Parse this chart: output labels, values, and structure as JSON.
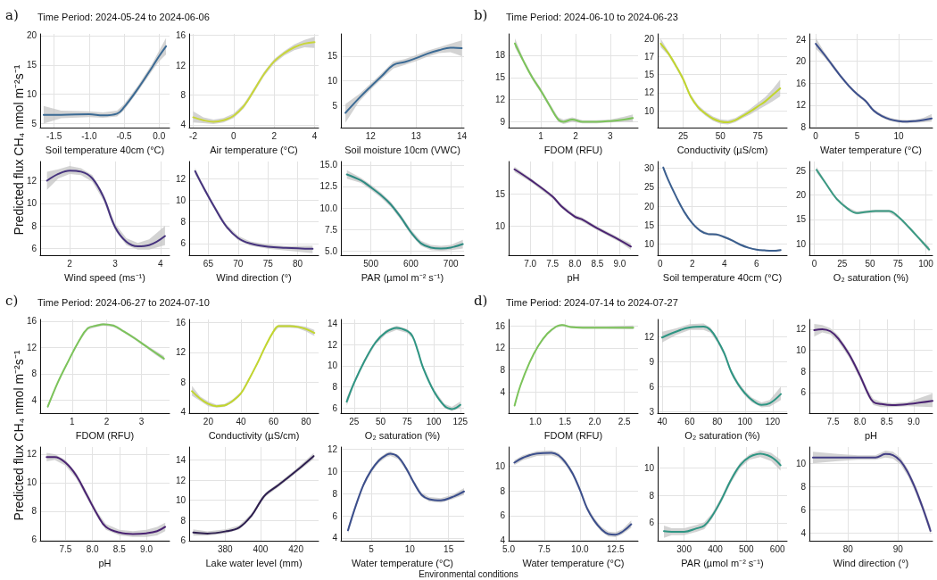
{
  "chart_data": [
    {
      "type": "line",
      "title": "Time Period: 2024-05-24 to 2024-06-06",
      "annotations": [
        "a)"
      ],
      "ylabel": "Predicted flux CH₄ nmol m⁻²s⁻¹",
      "xlabel": "Soil temperature 40cm (°C)",
      "grid": true,
      "xlim": [
        -1.7,
        0.15
      ],
      "xticks": [
        {
          "value": -1.5,
          "label": "-1.5"
        },
        {
          "value": -1,
          "label": "-1.0"
        },
        {
          "value": -0.5,
          "label": "-0.5"
        },
        {
          "value": 0,
          "label": "0.0"
        }
      ],
      "ylim": [
        4.3,
        20.3
      ],
      "yticks": [
        5,
        10,
        15,
        20
      ],
      "x": [
        -1.65,
        -1.4,
        -1.0,
        -0.8,
        -0.6,
        -0.5,
        -0.3,
        -0.1,
        0.0,
        0.1
      ],
      "series": [
        {
          "color": "#3b6a94",
          "values": [
            6.5,
            6.5,
            6.6,
            6.4,
            6.7,
            7.8,
            11,
            14.6,
            16.5,
            18.2
          ],
          "lower": [
            5.0,
            5.9,
            6.1,
            6.0,
            6.2,
            7.3,
            10.5,
            14,
            15.6,
            16.8
          ],
          "upper": [
            8.0,
            7.2,
            7.1,
            6.9,
            7.2,
            8.3,
            11.5,
            15.2,
            17.4,
            19.6
          ]
        }
      ]
    },
    {
      "type": "line",
      "xlabel": "Air temperature (°C)",
      "grid": true,
      "xlim": [
        -2.2,
        4.2
      ],
      "xticks": [
        -2,
        0,
        2,
        4
      ],
      "ylim": [
        3.6,
        16.2
      ],
      "yticks": [
        4,
        8,
        12,
        16
      ],
      "x": [
        -2,
        -1.5,
        -1,
        -0.5,
        0,
        0.5,
        1,
        1.5,
        2,
        2.5,
        3,
        3.5,
        4
      ],
      "series": [
        {
          "color": "#c9d63a",
          "values": [
            5.0,
            4.6,
            4.4,
            4.6,
            5.2,
            6.5,
            8.6,
            10.8,
            12.5,
            13.6,
            14.4,
            14.9,
            15.1
          ],
          "lower": [
            4.3,
            4.2,
            4.1,
            4.3,
            4.9,
            6.2,
            8.3,
            10.5,
            12.2,
            13.3,
            14.0,
            14.4,
            14.3
          ],
          "upper": [
            5.8,
            5.0,
            4.7,
            4.9,
            5.5,
            6.8,
            8.9,
            11.1,
            12.8,
            13.9,
            14.8,
            15.4,
            15.8
          ]
        }
      ]
    },
    {
      "type": "line",
      "xlabel": "Soil moisture 10cm (VWC)",
      "grid": true,
      "xlim": [
        11.35,
        14.05
      ],
      "xticks": [
        12,
        13,
        14
      ],
      "ylim": [
        0.5,
        19.5
      ],
      "yticks": [
        5,
        10,
        15
      ],
      "x": [
        11.45,
        11.75,
        12.0,
        12.25,
        12.5,
        12.75,
        13.0,
        13.25,
        13.5,
        13.75,
        14.0
      ],
      "series": [
        {
          "color": "#3b6a94",
          "values": [
            3.5,
            6.5,
            8.8,
            11,
            13.2,
            13.8,
            14.6,
            15.5,
            16.2,
            16.7,
            16.6
          ],
          "lower": [
            1.5,
            5.8,
            8.2,
            10.4,
            12.5,
            13.2,
            14.0,
            14.9,
            15.6,
            15.8,
            15.0
          ],
          "upper": [
            5.3,
            7.3,
            9.4,
            11.6,
            13.9,
            14.4,
            15.2,
            16.1,
            16.8,
            17.5,
            18.2
          ]
        }
      ]
    },
    {
      "type": "line",
      "xlabel": "Wind speed (ms⁻¹)",
      "grid": true,
      "xlim": [
        1.35,
        4.2
      ],
      "xticks": [
        2,
        3,
        4
      ],
      "ylim": [
        5.4,
        13.7
      ],
      "yticks": [
        6,
        8,
        10,
        12
      ],
      "x": [
        1.5,
        1.75,
        2.0,
        2.25,
        2.5,
        2.75,
        3.0,
        3.25,
        3.5,
        3.75,
        4.1
      ],
      "series": [
        {
          "color": "#46337e",
          "values": [
            12.0,
            12.6,
            12.9,
            12.8,
            12.2,
            10.5,
            7.9,
            6.6,
            6.2,
            6.3,
            7.1
          ],
          "lower": [
            11.2,
            12.2,
            12.6,
            12.5,
            11.9,
            10.2,
            7.6,
            6.3,
            5.9,
            5.9,
            6.3
          ],
          "upper": [
            12.8,
            13.0,
            13.3,
            13.1,
            12.5,
            10.8,
            8.2,
            6.9,
            6.5,
            6.8,
            8.0
          ]
        }
      ]
    },
    {
      "type": "line",
      "xlabel": "Wind direction (°)",
      "grid": true,
      "xlim": [
        61.8,
        83.5
      ],
      "xticks": [
        65,
        70,
        75,
        80
      ],
      "ylim": [
        4.9,
        13.6
      ],
      "yticks": [
        6,
        8,
        10,
        12
      ],
      "x": [
        62.8,
        64,
        66,
        68,
        70,
        72,
        75,
        78,
        82.5
      ],
      "series": [
        {
          "color": "#46337e",
          "values": [
            12.7,
            11.4,
            9.4,
            7.6,
            6.5,
            6.0,
            5.7,
            5.6,
            5.5
          ],
          "lower": [
            12.4,
            11.2,
            9.2,
            7.4,
            6.3,
            5.8,
            5.5,
            5.35,
            5.1
          ],
          "upper": [
            13.0,
            11.6,
            9.6,
            7.8,
            6.7,
            6.2,
            5.9,
            5.75,
            5.8
          ]
        }
      ]
    },
    {
      "type": "line",
      "xlabel": "PAR (µmol m⁻² s⁻¹)",
      "grid": true,
      "xlim": [
        425,
        733
      ],
      "xticks": [
        500,
        600,
        700
      ],
      "ylim": [
        4.5,
        15.4
      ],
      "yticks": [
        {
          "value": 5,
          "label": "5.0"
        },
        {
          "value": 7.5,
          "label": "7.5"
        },
        {
          "value": 10,
          "label": "10.0"
        },
        {
          "value": 12.5,
          "label": "12.5"
        },
        {
          "value": 15,
          "label": "15.0"
        }
      ],
      "x": [
        440,
        475,
        500,
        525,
        550,
        575,
        600,
        625,
        650,
        675,
        700,
        730
      ],
      "series": [
        {
          "color": "#2e8b82",
          "values": [
            13.9,
            13.2,
            12.4,
            11.5,
            10.4,
            8.9,
            7.2,
            5.9,
            5.4,
            5.3,
            5.4,
            5.8
          ],
          "lower": [
            13.4,
            12.9,
            12.1,
            11.2,
            10.1,
            8.6,
            6.9,
            5.6,
            5.1,
            5.0,
            5.1,
            5.3
          ],
          "upper": [
            14.4,
            13.5,
            12.7,
            11.8,
            10.7,
            9.2,
            7.5,
            6.2,
            5.7,
            5.6,
            5.7,
            6.3
          ]
        }
      ]
    },
    {
      "type": "line",
      "title": "Time Period: 2024-06-10 to 2024-06-23",
      "annotations": [
        "b)"
      ],
      "xlabel": "FDOM (RFU)",
      "grid": true,
      "xlim": [
        0.07,
        3.8
      ],
      "xticks": [
        1,
        2,
        3
      ],
      "ylim": [
        8.2,
        20.9
      ],
      "yticks": [
        9,
        12,
        15,
        18
      ],
      "x": [
        0.25,
        0.5,
        0.75,
        1.0,
        1.25,
        1.5,
        1.65,
        1.9,
        2.2,
        2.6,
        3.0,
        3.4,
        3.65
      ],
      "series": [
        {
          "color": "#7cc45a",
          "values": [
            19.6,
            17.2,
            15.0,
            13.2,
            11.2,
            9.3,
            9.0,
            9.3,
            9.0,
            9.0,
            9.1,
            9.3,
            9.5
          ],
          "lower": [
            19.1,
            16.9,
            14.7,
            12.9,
            10.9,
            9.0,
            8.7,
            9.0,
            8.8,
            8.8,
            8.9,
            9.0,
            9.0
          ],
          "upper": [
            20.3,
            17.5,
            15.3,
            13.5,
            11.5,
            9.6,
            9.3,
            9.6,
            9.2,
            9.2,
            9.3,
            9.7,
            10.0
          ]
        }
      ]
    },
    {
      "type": "line",
      "xlabel": "Conductivity (µS/cm)",
      "grid": true,
      "xlim": [
        8,
        94.6
      ],
      "xticks": [
        25,
        50,
        75
      ],
      "ylim": [
        7.65,
        20.65
      ],
      "yticks": [
        10,
        {
          "value": 12.5,
          "label": "12"
        },
        15,
        {
          "value": 17.5,
          "label": "17"
        },
        20
      ],
      "x": [
        10,
        15,
        20,
        25,
        30,
        35,
        40,
        45,
        50,
        55,
        60,
        65,
        70,
        75,
        80,
        85,
        90
      ],
      "series": [
        {
          "color": "#c2d62e",
          "values": [
            19.3,
            18.0,
            16.3,
            14.4,
            12.0,
            10.5,
            9.6,
            8.9,
            8.5,
            8.4,
            8.7,
            9.3,
            9.9,
            10.6,
            11.3,
            12.2,
            13.1
          ],
          "lower": [
            18.8,
            17.7,
            16.0,
            14.1,
            11.7,
            10.2,
            9.3,
            8.6,
            8.2,
            8.1,
            8.4,
            9.0,
            9.5,
            10.1,
            10.7,
            11.3,
            12.0
          ],
          "upper": [
            20.0,
            18.3,
            16.6,
            14.7,
            12.3,
            10.8,
            9.9,
            9.2,
            8.8,
            8.7,
            9.0,
            9.6,
            10.3,
            11.1,
            11.9,
            13.0,
            14.3
          ]
        }
      ]
    },
    {
      "type": "line",
      "xlabel": "Water temperature (°C)",
      "grid": true,
      "xlim": [
        -0.77,
        14.1
      ],
      "xticks": [
        0,
        5,
        10
      ],
      "ylim": [
        7.9,
        25
      ],
      "yticks": [
        8,
        12,
        16,
        20,
        24
      ],
      "x": [
        0,
        1,
        2,
        3,
        4,
        5,
        6,
        7,
        8,
        9,
        10,
        11,
        12,
        13,
        14
      ],
      "series": [
        {
          "color": "#3b4e8c",
          "values": [
            23.2,
            21.3,
            19.3,
            17.3,
            15.5,
            14.0,
            12.8,
            11.0,
            10.0,
            9.4,
            9.1,
            9.0,
            9.1,
            9.3,
            9.6
          ],
          "lower": [
            22.3,
            20.8,
            18.9,
            17.0,
            15.2,
            13.7,
            12.5,
            10.7,
            9.7,
            9.1,
            8.8,
            8.7,
            8.8,
            8.9,
            9.0
          ],
          "upper": [
            24.3,
            21.8,
            19.7,
            17.6,
            15.8,
            14.3,
            13.1,
            11.3,
            10.3,
            9.7,
            9.4,
            9.3,
            9.4,
            9.7,
            10.4
          ]
        }
      ]
    },
    {
      "type": "line",
      "xlabel": "pH",
      "grid": true,
      "xlim": [
        6.52,
        9.41
      ],
      "xticks": [
        {
          "value": 7,
          "label": "7.0"
        },
        7.5,
        {
          "value": 8,
          "label": "8.0"
        },
        8.5,
        {
          "value": 9,
          "label": "9.0"
        }
      ],
      "ylim": [
        5.55,
        20
      ],
      "yticks": [
        10,
        15
      ],
      "x": [
        6.65,
        7.0,
        7.5,
        7.7,
        8.0,
        8.15,
        8.5,
        9.0,
        9.25
      ],
      "series": [
        {
          "color": "#4a2372",
          "values": [
            18.8,
            17.2,
            14.6,
            13.1,
            11.5,
            11.1,
            9.7,
            7.9,
            6.9
          ],
          "lower": [
            18.4,
            16.9,
            14.3,
            12.8,
            11.2,
            10.8,
            9.4,
            7.6,
            6.4
          ],
          "upper": [
            19.2,
            17.5,
            14.9,
            13.4,
            11.8,
            11.4,
            10.0,
            8.2,
            7.4
          ]
        }
      ]
    },
    {
      "type": "line",
      "xlabel": "Soil temperature 40cm (°C)",
      "grid": true,
      "xlim": [
        -0.15,
        7.9
      ],
      "xticks": [
        0,
        2,
        4,
        6
      ],
      "ylim": [
        7,
        31.8
      ],
      "yticks": [
        10,
        15,
        20,
        25,
        30
      ],
      "x": [
        0.2,
        0.5,
        1.0,
        1.5,
        2.0,
        2.5,
        3.0,
        3.5,
        4.0,
        4.5,
        5.0,
        5.5,
        6.0,
        6.5,
        7.0,
        7.5
      ],
      "series": [
        {
          "color": "#3b5f8f",
          "values": [
            30.2,
            27.0,
            22.5,
            18.5,
            15.5,
            13.5,
            12.6,
            12.5,
            11.8,
            10.9,
            9.8,
            9.0,
            8.5,
            8.3,
            8.2,
            8.4
          ],
          "lower": [
            29.7,
            26.7,
            22.2,
            18.2,
            15.2,
            13.2,
            12.3,
            12.2,
            11.5,
            10.6,
            9.5,
            8.8,
            8.3,
            8.1,
            8.0,
            8.1
          ],
          "upper": [
            30.7,
            27.3,
            22.8,
            18.8,
            15.8,
            13.8,
            12.9,
            12.8,
            12.1,
            11.2,
            10.1,
            9.2,
            8.7,
            8.5,
            8.4,
            8.7
          ]
        }
      ]
    },
    {
      "type": "line",
      "xlabel": "O₂ saturation (%)",
      "grid": true,
      "xlim": [
        -4.4,
        106
      ],
      "xticks": [
        0,
        25,
        50,
        75,
        100
      ],
      "ylim": [
        7.6,
        26.9
      ],
      "yticks": [
        10,
        15,
        20,
        25
      ],
      "x": [
        2,
        10,
        20,
        30,
        38,
        45,
        55,
        67,
        75,
        85,
        95,
        103
      ],
      "series": [
        {
          "color": "#3a9a83",
          "values": [
            25.2,
            22.5,
            19.2,
            17.2,
            16.3,
            16.5,
            16.7,
            16.7,
            15.6,
            13.3,
            10.8,
            8.8
          ],
          "lower": [
            24.6,
            22.2,
            18.9,
            16.9,
            16.0,
            16.2,
            16.4,
            16.4,
            15.3,
            13.0,
            10.5,
            8.3
          ],
          "upper": [
            25.8,
            22.8,
            19.5,
            17.5,
            16.6,
            16.8,
            17.0,
            17.0,
            15.9,
            13.6,
            11.1,
            9.3
          ]
        }
      ]
    },
    {
      "type": "line",
      "title": "Time Period: 2024-06-27 to 2024-07-10",
      "annotations": [
        "c)"
      ],
      "ylabel": "Predicted flux CH₄ nmol m⁻²s⁻¹",
      "xlabel": "FDOM (RFU)",
      "grid": true,
      "xlim": [
        0.08,
        3.81
      ],
      "xticks": [
        1,
        2,
        3
      ],
      "ylim": [
        2,
        16.25
      ],
      "yticks": [
        4,
        8,
        12,
        16
      ],
      "x": [
        0.3,
        0.6,
        0.9,
        1.2,
        1.45,
        1.7,
        1.9,
        2.2,
        2.5,
        2.8,
        3.1,
        3.4,
        3.65
      ],
      "series": [
        {
          "color": "#7cc45a",
          "values": [
            3.0,
            6.8,
            10.0,
            13.0,
            14.9,
            15.3,
            15.5,
            15.3,
            14.4,
            13.4,
            12.3,
            11.2,
            10.3
          ],
          "lower": [
            2.7,
            6.6,
            9.8,
            12.8,
            14.7,
            15.1,
            15.3,
            15.1,
            14.2,
            13.2,
            12.1,
            10.9,
            10.0
          ],
          "upper": [
            3.3,
            7.0,
            10.2,
            13.2,
            15.1,
            15.5,
            15.7,
            15.5,
            14.6,
            13.6,
            12.5,
            11.5,
            10.7
          ]
        }
      ]
    },
    {
      "type": "line",
      "xlabel": "Conductivity (µS/cm)",
      "grid": true,
      "xlim": [
        8.3,
        87.6
      ],
      "xticks": [
        20,
        40,
        60,
        80
      ],
      "ylim": [
        3.85,
        16.4
      ],
      "yticks": [
        4,
        8,
        12,
        16
      ],
      "x": [
        10,
        15,
        20,
        25,
        30,
        35,
        40,
        45,
        50,
        55,
        60,
        63,
        70,
        75,
        80,
        85
      ],
      "series": [
        {
          "color": "#c2d62e",
          "values": [
            6.8,
            5.8,
            5.1,
            4.8,
            4.9,
            5.5,
            6.5,
            8.4,
            10.5,
            12.8,
            14.8,
            15.5,
            15.5,
            15.4,
            15.1,
            14.6
          ],
          "lower": [
            6.2,
            5.5,
            4.8,
            4.6,
            4.7,
            5.3,
            6.3,
            8.2,
            10.3,
            12.6,
            14.6,
            15.3,
            15.3,
            15.2,
            14.8,
            14.2
          ],
          "upper": [
            7.5,
            6.1,
            5.4,
            5.0,
            5.1,
            5.7,
            6.7,
            8.6,
            10.7,
            13.0,
            15.0,
            15.7,
            15.7,
            15.6,
            15.4,
            15.0
          ]
        }
      ]
    },
    {
      "type": "line",
      "xlabel": "O₂ saturation (%)",
      "grid": true,
      "xlim": [
        12.5,
        128.5
      ],
      "xticks": [
        25,
        50,
        75,
        100,
        125
      ],
      "ylim": [
        5.5,
        14.4
      ],
      "yticks": [
        6,
        8,
        10,
        12,
        14
      ],
      "x": [
        18,
        25,
        35,
        45,
        55,
        65,
        75,
        80,
        85,
        90,
        100,
        110,
        117,
        125
      ],
      "series": [
        {
          "color": "#2e9583",
          "values": [
            6.6,
            8.4,
            10.5,
            12.2,
            13.2,
            13.6,
            13.3,
            12.8,
            11.4,
            9.8,
            7.6,
            6.2,
            5.9,
            6.3
          ],
          "lower": [
            6.2,
            8.2,
            10.3,
            12.0,
            13.0,
            13.4,
            13.1,
            12.6,
            11.2,
            9.6,
            7.4,
            6.0,
            5.7,
            6.0
          ],
          "upper": [
            7.0,
            8.6,
            10.7,
            12.4,
            13.4,
            13.8,
            13.5,
            13.0,
            11.6,
            10.0,
            7.8,
            6.4,
            6.1,
            6.6
          ]
        }
      ]
    },
    {
      "type": "line",
      "xlabel": "pH",
      "grid": true,
      "xlim": [
        7.03,
        9.43
      ],
      "xticks": [
        7.5,
        {
          "value": 8,
          "label": "8.0"
        },
        8.5,
        {
          "value": 9,
          "label": "9.0"
        }
      ],
      "ylim": [
        5.92,
        12.5
      ],
      "yticks": [
        6,
        8,
        10,
        12
      ],
      "x": [
        7.15,
        7.3,
        7.5,
        7.7,
        7.9,
        8.1,
        8.25,
        8.5,
        8.75,
        9.0,
        9.2,
        9.35
      ],
      "series": [
        {
          "color": "#4a2372",
          "values": [
            11.8,
            11.8,
            11.4,
            10.5,
            9.1,
            7.7,
            6.9,
            6.5,
            6.4,
            6.45,
            6.6,
            6.9
          ],
          "lower": [
            11.5,
            11.6,
            11.2,
            10.3,
            8.9,
            7.5,
            6.7,
            6.3,
            6.2,
            6.2,
            6.3,
            6.6
          ],
          "upper": [
            12.1,
            12.0,
            11.6,
            10.7,
            9.3,
            7.9,
            7.1,
            6.7,
            6.6,
            6.7,
            6.9,
            7.2
          ]
        }
      ]
    },
    {
      "type": "line",
      "xlabel": "Lake water level (mm)",
      "grid": true,
      "xlim": [
        359.7,
        432.8
      ],
      "xticks": [
        380,
        400,
        420
      ],
      "ylim": [
        5.97,
        15.3
      ],
      "yticks": [
        6,
        8,
        10,
        12,
        14
      ],
      "x": [
        362,
        370,
        380,
        388,
        395,
        400,
        403,
        410,
        420,
        430
      ],
      "series": [
        {
          "color": "#2d1e4f",
          "values": [
            6.8,
            6.7,
            6.9,
            7.3,
            8.5,
            9.9,
            10.6,
            11.5,
            12.9,
            14.4
          ],
          "lower": [
            6.5,
            6.5,
            6.7,
            7.1,
            8.3,
            9.7,
            10.4,
            11.3,
            12.7,
            14.1
          ],
          "upper": [
            7.1,
            6.9,
            7.1,
            7.5,
            8.7,
            10.1,
            10.8,
            11.7,
            13.1,
            14.7
          ]
        }
      ]
    },
    {
      "type": "line",
      "xlabel": "Water temperature (°C)",
      "grid": true,
      "xlim": [
        1.08,
        17
      ],
      "xticks": [
        5,
        10,
        15
      ],
      "ylim": [
        3.75,
        12.2
      ],
      "yticks": [
        4,
        6,
        8,
        10,
        12
      ],
      "x": [
        2,
        3,
        4,
        5,
        6,
        7,
        7.5,
        8.5,
        9.5,
        10.5,
        11.5,
        12.5,
        14,
        15.5,
        17
      ],
      "series": [
        {
          "color": "#3b4e8c",
          "values": [
            4.7,
            6.9,
            8.8,
            10.1,
            11.0,
            11.5,
            11.6,
            11.3,
            10.3,
            9.0,
            7.9,
            7.5,
            7.4,
            7.7,
            8.2
          ],
          "lower": [
            4.4,
            6.7,
            8.6,
            9.9,
            10.8,
            11.3,
            11.4,
            11.1,
            10.1,
            8.8,
            7.7,
            7.3,
            7.2,
            7.5,
            7.9
          ],
          "upper": [
            5.0,
            7.1,
            9.0,
            10.3,
            11.2,
            11.7,
            11.8,
            11.5,
            10.5,
            9.2,
            8.1,
            7.7,
            7.6,
            7.9,
            8.5
          ]
        }
      ]
    },
    {
      "type": "line",
      "title": "Time Period: 2024-07-14 to 2024-07-27",
      "annotations": [
        "d)"
      ],
      "xlabel": "FDOM (RFU)",
      "grid": true,
      "xlim": [
        0.55,
        2.73
      ],
      "xticks": [
        {
          "value": 1,
          "label": "1.0"
        },
        1.5,
        {
          "value": 2,
          "label": "2.0"
        },
        2.5
      ],
      "ylim": [
        0.1,
        17.2
      ],
      "yticks": [
        4,
        8,
        12,
        16
      ],
      "x": [
        0.65,
        0.75,
        0.9,
        1.05,
        1.2,
        1.35,
        1.45,
        1.6,
        1.8,
        2.2,
        2.65
      ],
      "series": [
        {
          "color": "#7cc45a",
          "values": [
            1.5,
            5.2,
            9.3,
            12.4,
            14.6,
            15.9,
            16.2,
            15.8,
            15.7,
            15.7,
            15.7
          ],
          "lower": [
            1.2,
            5.0,
            9.1,
            12.2,
            14.4,
            15.7,
            16.0,
            15.6,
            15.5,
            15.5,
            15.4
          ],
          "upper": [
            1.8,
            5.4,
            9.5,
            12.6,
            14.8,
            16.1,
            16.4,
            16.0,
            15.9,
            15.9,
            16.1
          ]
        }
      ]
    },
    {
      "type": "line",
      "xlabel": "O₂ saturation (%)",
      "grid": true,
      "xlim": [
        36.8,
        130.5
      ],
      "xticks": [
        40,
        60,
        80,
        100,
        120
      ],
      "ylim": [
        2.8,
        14.07
      ],
      "yticks": [
        3,
        6,
        9,
        12
      ],
      "x": [
        40,
        50,
        60,
        70,
        75,
        80,
        85,
        90,
        95,
        100,
        105,
        112,
        118,
        126
      ],
      "series": [
        {
          "color": "#2e9583",
          "values": [
            11.9,
            12.6,
            13.1,
            13.2,
            12.8,
            11.6,
            10.0,
            7.8,
            6.3,
            5.2,
            4.4,
            3.8,
            4.0,
            5.1
          ],
          "lower": [
            11.3,
            12.2,
            12.8,
            12.8,
            12.5,
            11.3,
            9.7,
            7.5,
            6.0,
            4.9,
            4.1,
            3.5,
            3.6,
            4.4
          ],
          "upper": [
            12.6,
            13.0,
            13.5,
            13.6,
            13.1,
            11.9,
            10.3,
            8.1,
            6.6,
            5.5,
            4.7,
            4.1,
            4.4,
            6.0
          ]
        }
      ]
    },
    {
      "type": "line",
      "xlabel": "pH",
      "grid": true,
      "xlim": [
        7.06,
        9.35
      ],
      "xticks": [
        7.5,
        {
          "value": 8,
          "label": "8.0"
        },
        8.5,
        {
          "value": 9,
          "label": "9.0"
        }
      ],
      "ylim": [
        4.03,
        12.92
      ],
      "yticks": [
        6,
        8,
        10,
        12
      ],
      "x": [
        7.15,
        7.3,
        7.45,
        7.6,
        7.8,
        8.0,
        8.15,
        8.25,
        8.4,
        8.6,
        8.9,
        9.35
      ],
      "series": [
        {
          "color": "#4a2372",
          "values": [
            11.9,
            12.0,
            11.8,
            11.1,
            9.6,
            7.6,
            5.9,
            5.1,
            4.9,
            4.8,
            4.9,
            5.2
          ],
          "lower": [
            11.3,
            11.7,
            11.5,
            10.8,
            9.3,
            7.3,
            5.6,
            4.8,
            4.6,
            4.6,
            4.7,
            4.6
          ],
          "upper": [
            12.5,
            12.4,
            12.1,
            11.4,
            9.9,
            7.9,
            6.2,
            5.4,
            5.1,
            5.0,
            5.1,
            5.9
          ]
        }
      ]
    },
    {
      "type": "line",
      "xlabel": "Water temperature (°C)",
      "grid": true,
      "xlim": [
        5,
        14.08
      ],
      "xticks": [
        {
          "value": 5,
          "label": "5.0"
        },
        7.5,
        {
          "value": 10,
          "label": "10.0"
        },
        12.5
      ],
      "ylim": [
        3.95,
        11.57
      ],
      "yticks": [
        4,
        6,
        8,
        10
      ],
      "x": [
        5.4,
        6,
        7,
        8,
        8.5,
        9,
        9.5,
        10,
        10.5,
        11,
        11.5,
        12,
        12.5,
        13,
        13.6
      ],
      "series": [
        {
          "color": "#3b4e8c",
          "values": [
            10.3,
            10.7,
            11.05,
            11.1,
            10.9,
            10.3,
            9.4,
            8.1,
            6.6,
            5.6,
            4.9,
            4.5,
            4.45,
            4.7,
            5.3
          ],
          "lower": [
            10.1,
            10.5,
            10.85,
            10.9,
            10.7,
            10.1,
            9.2,
            7.9,
            6.4,
            5.4,
            4.7,
            4.3,
            4.25,
            4.5,
            5.0
          ],
          "upper": [
            10.5,
            10.9,
            11.25,
            11.3,
            11.1,
            10.5,
            9.6,
            8.3,
            6.8,
            5.8,
            5.1,
            4.7,
            4.65,
            4.9,
            5.6
          ]
        }
      ]
    },
    {
      "type": "line",
      "xlabel": "PAR (µmol m⁻² s⁻¹)",
      "grid": true,
      "xlim": [
        215,
        631
      ],
      "xticks": [
        300,
        400,
        500,
        600
      ],
      "ylim": [
        4.69,
        11.53
      ],
      "yticks": [
        6,
        8,
        10
      ],
      "x": [
        235,
        260,
        300,
        340,
        365,
        390,
        420,
        450,
        480,
        510,
        545,
        580,
        610
      ],
      "series": [
        {
          "color": "#2e9583",
          "values": [
            5.4,
            5.35,
            5.35,
            5.6,
            5.8,
            6.5,
            7.7,
            9.1,
            10.2,
            10.8,
            11.05,
            10.8,
            10.2
          ],
          "lower": [
            4.9,
            5.1,
            5.1,
            5.35,
            5.55,
            6.3,
            7.5,
            8.9,
            10.0,
            10.6,
            10.8,
            10.5,
            9.8
          ],
          "upper": [
            5.8,
            5.6,
            5.6,
            5.85,
            6.05,
            6.7,
            7.9,
            9.3,
            10.4,
            11.0,
            11.3,
            11.1,
            10.6
          ]
        }
      ]
    },
    {
      "type": "line",
      "xlabel": "Wind direction (°)",
      "annotations": [
        "Environmental conditions"
      ],
      "grid": true,
      "xlim": [
        72.3,
        96.9
      ],
      "xticks": [
        80,
        90
      ],
      "ylim": [
        3.35,
        11.4
      ],
      "yticks": [
        4,
        6,
        8,
        10
      ],
      "x": [
        73,
        78,
        82,
        85.5,
        87.5,
        89,
        90.5,
        92,
        93.5,
        95,
        96.5
      ],
      "series": [
        {
          "color": "#433e85",
          "values": [
            10.5,
            10.5,
            10.5,
            10.5,
            10.8,
            10.7,
            10.2,
            9.2,
            7.8,
            6.1,
            4.2
          ],
          "lower": [
            10.0,
            10.2,
            10.3,
            10.3,
            10.5,
            10.4,
            9.9,
            8.9,
            7.5,
            5.8,
            3.9
          ],
          "upper": [
            11.0,
            10.8,
            10.7,
            10.7,
            11.1,
            11.0,
            10.5,
            9.5,
            8.1,
            6.4,
            4.6
          ]
        }
      ]
    }
  ]
}
